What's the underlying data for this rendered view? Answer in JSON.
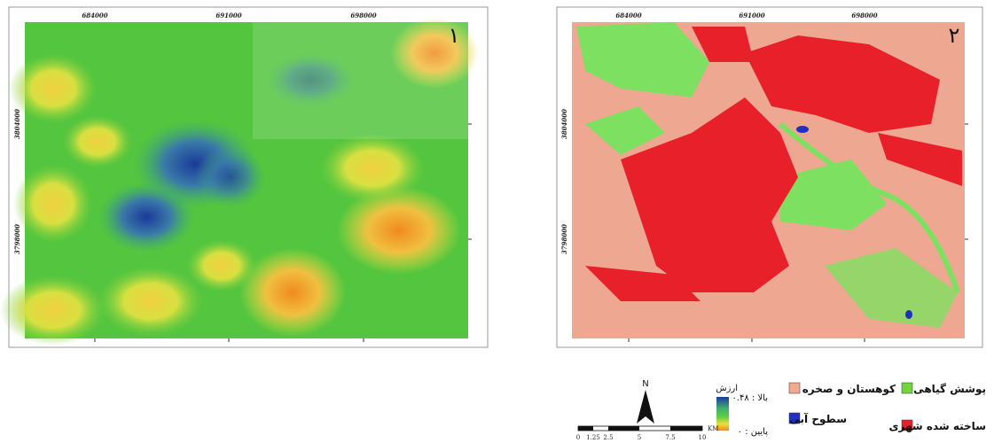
{
  "maps": [
    {
      "label": "١"
    },
    {
      "label": "٢"
    }
  ],
  "axes": {
    "xticks": [
      "684000",
      "691000",
      "698000"
    ],
    "yticks": [
      "3804000",
      "3798000"
    ]
  },
  "legend": {
    "value_title": "ارزش",
    "high": "بالا : ۰.۴۸",
    "low": "پایین : ۰",
    "classes": [
      "پوشش گیاهی",
      "کوهستان و صخره",
      "ساخته شده شهری",
      "سطوح آبی"
    ]
  },
  "north": "N",
  "scale": {
    "ticks": [
      "0",
      "1.25",
      "2.5",
      "5",
      "7.5",
      "10"
    ],
    "unit": "KM"
  }
}
